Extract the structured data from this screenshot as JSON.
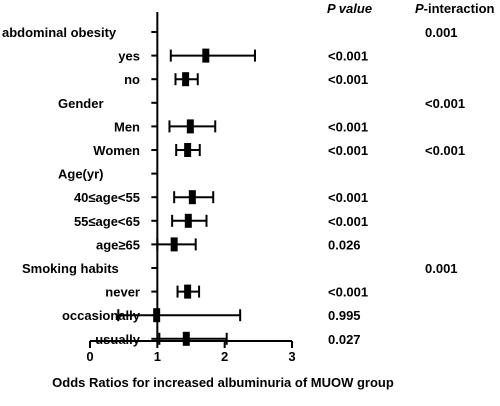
{
  "chart_data": {
    "type": "forest",
    "xlabel": "Odds Ratios for increased albuminuria of MUOW group",
    "xlim": [
      0,
      3
    ],
    "xticks": [
      "0",
      "1",
      "2",
      "3"
    ],
    "reference_line": 1,
    "headers": {
      "p_value": "P value",
      "p_interaction_italic": "P",
      "p_interaction_rest": "-interaction"
    },
    "rows": [
      {
        "label": "abdominal obesity",
        "p_interaction": "0.001"
      },
      {
        "label": "yes",
        "or": 1.72,
        "lo": 1.2,
        "hi": 2.45,
        "p": "<0.001"
      },
      {
        "label": "no",
        "or": 1.42,
        "lo": 1.27,
        "hi": 1.6,
        "p": "<0.001"
      },
      {
        "label": "Gender",
        "p_interaction": "<0.001"
      },
      {
        "label": "Men",
        "or": 1.49,
        "lo": 1.18,
        "hi": 1.86,
        "p": "<0.001"
      },
      {
        "label": "Women",
        "or": 1.45,
        "lo": 1.28,
        "hi": 1.63,
        "p": "<0.001",
        "p_interaction": "<0.001"
      },
      {
        "label": "Age(yr)"
      },
      {
        "label": "40≤age<55",
        "or": 1.52,
        "lo": 1.25,
        "hi": 1.83,
        "p": "<0.001"
      },
      {
        "label": "55≤age<65",
        "or": 1.46,
        "lo": 1.22,
        "hi": 1.73,
        "p": "<0.001"
      },
      {
        "label": "age≥65",
        "or": 1.25,
        "lo": 1.0,
        "hi": 1.57,
        "p": "0.026"
      },
      {
        "label": "Smoking habits",
        "p_interaction": "0.001"
      },
      {
        "label": "never",
        "or": 1.45,
        "lo": 1.3,
        "hi": 1.62,
        "p": "<0.001"
      },
      {
        "label": "occasionally",
        "or": 0.99,
        "lo": 0.42,
        "hi": 2.23,
        "p": "0.995"
      },
      {
        "label": "usually",
        "or": 1.43,
        "lo": 1.03,
        "hi": 2.03,
        "p": "0.027"
      }
    ]
  }
}
